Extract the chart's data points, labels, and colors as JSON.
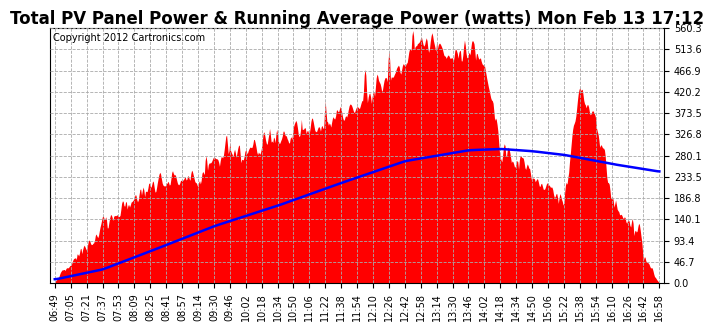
{
  "title": "Total PV Panel Power & Running Average Power (watts) Mon Feb 13 17:12",
  "copyright": "Copyright 2012 Cartronics.com",
  "ylim": [
    0.0,
    560.3
  ],
  "yticks": [
    0.0,
    46.7,
    93.4,
    140.1,
    186.8,
    233.5,
    280.1,
    326.8,
    373.5,
    420.2,
    466.9,
    513.6,
    560.3
  ],
  "xlabels": [
    "06:49",
    "07:05",
    "07:21",
    "07:37",
    "07:53",
    "08:09",
    "08:25",
    "08:41",
    "08:57",
    "09:14",
    "09:30",
    "09:46",
    "10:02",
    "10:18",
    "10:34",
    "10:50",
    "11:06",
    "11:22",
    "11:38",
    "11:54",
    "12:10",
    "12:26",
    "12:42",
    "12:58",
    "13:14",
    "13:30",
    "13:46",
    "14:02",
    "14:18",
    "14:34",
    "14:50",
    "15:06",
    "15:22",
    "15:38",
    "15:54",
    "16:10",
    "16:26",
    "16:42",
    "16:58"
  ],
  "pv_color": "#FF0000",
  "avg_color": "#0000FF",
  "bg_color": "#FFFFFF",
  "grid_color": "#AAAAAA",
  "title_fontsize": 12,
  "copyright_fontsize": 7,
  "tick_fontsize": 7,
  "avg_x_knots": [
    0,
    3,
    6,
    10,
    14,
    18,
    22,
    26,
    28,
    30,
    32,
    35,
    38
  ],
  "avg_y_knots": [
    8,
    30,
    70,
    125,
    170,
    220,
    268,
    292,
    295,
    290,
    282,
    262,
    245
  ],
  "pv_envelope_x": [
    0,
    1,
    2,
    3,
    4,
    5,
    6,
    7,
    8,
    9,
    10,
    11,
    12,
    13,
    14,
    15,
    16,
    17,
    18,
    19,
    20,
    21,
    22,
    23,
    24,
    25,
    26,
    27,
    28,
    29,
    30,
    31,
    32,
    33,
    34,
    35,
    36,
    37,
    38
  ],
  "pv_envelope_y": [
    15,
    40,
    80,
    115,
    150,
    185,
    195,
    215,
    225,
    220,
    255,
    285,
    275,
    300,
    315,
    325,
    335,
    345,
    355,
    380,
    410,
    435,
    480,
    535,
    510,
    495,
    505,
    480,
    290,
    255,
    235,
    195,
    175,
    415,
    345,
    175,
    135,
    55,
    8
  ]
}
